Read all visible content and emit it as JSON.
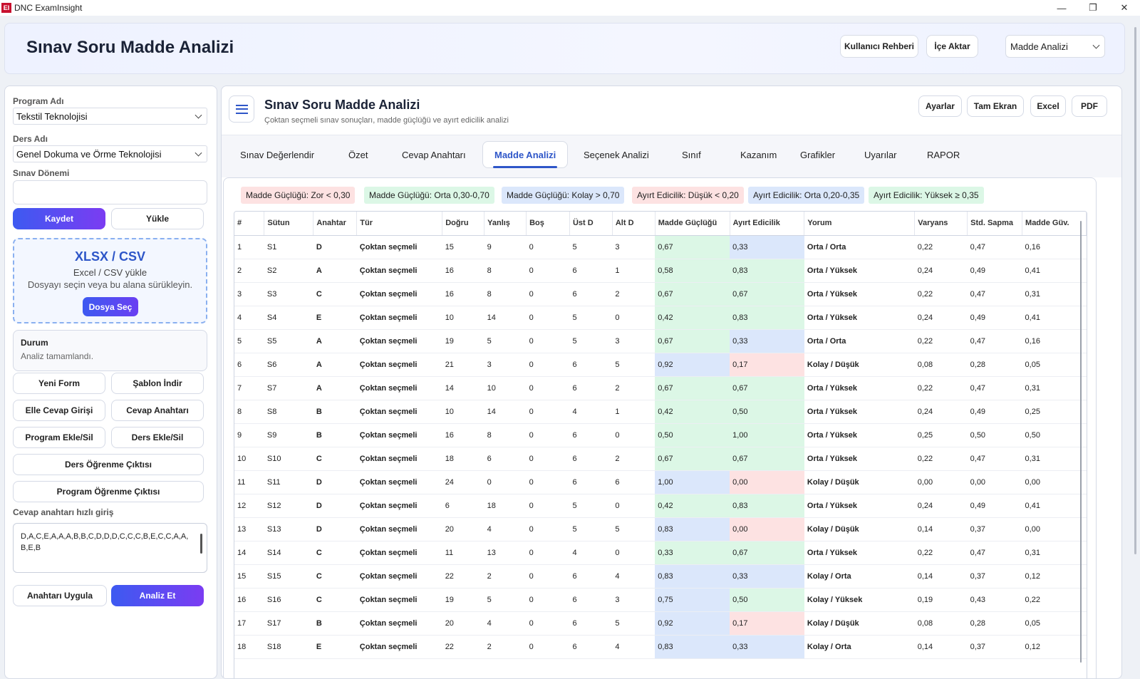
{
  "window": {
    "logo": "EI",
    "title": "DNC ExamInsight",
    "minimize": "—",
    "maximize": "❐",
    "close": "✕"
  },
  "header": {
    "title": "Sınav Soru Madde Analizi",
    "guide": "Kullanıcı Rehberi",
    "import": "İçe Aktar",
    "view_select": "Madde Analizi"
  },
  "sidebar": {
    "program_label": "Program Adı",
    "program_value": "Tekstil Teknolojisi",
    "course_label": "Ders Adı",
    "course_value": "Genel Dokuma ve Örme Teknolojisi",
    "period_label": "Sınav Dönemi",
    "period_value": "",
    "save": "Kaydet",
    "load": "Yükle",
    "dz_title": "XLSX / CSV",
    "dz_sub": "Excel / CSV yükle",
    "dz_hint": "Dosyayı seçin veya bu alana sürükleyin.",
    "dz_button": "Dosya Seç",
    "status_title": "Durum",
    "status_text": "Analiz tamamlandı.",
    "new_form": "Yeni Form",
    "download_template": "Şablon İndir",
    "manual_entry": "Elle Cevap Girişi",
    "answer_key": "Cevap Anahtarı",
    "program_add": "Program Ekle/Sil",
    "course_add": "Ders Ekle/Sil",
    "course_outcome": "Ders Öğrenme Çıktısı",
    "program_outcome": "Program Öğrenme Çıktısı",
    "quick_key_label": "Cevap anahtarı hızlı giriş",
    "quick_key_value": "D,A,C,E,A,A,A,B,B,C,D,D,D,C,C,C,B,E,C,C,A,A,B,E,B",
    "apply_key": "Anahtarı Uygula",
    "analyze": "Analiz Et"
  },
  "main": {
    "title": "Sınav Soru Madde Analizi",
    "subtitle": "Çoktan seçmeli sınav sonuçları, madde güçlüğü ve ayırt edicilik analizi",
    "settings": "Ayarlar",
    "fullscreen": "Tam Ekran",
    "excel": "Excel",
    "pdf": "PDF"
  },
  "tabs": [
    "Sınav Değerlendir",
    "Özet",
    "Cevap Anahtarı",
    "Madde Analizi",
    "Seçenek Analizi",
    "Sınıf",
    "Kazanım",
    "Grafikler",
    "Uyarılar",
    "RAPOR"
  ],
  "legend": [
    "Madde Güçlüğü: Zor < 0,30",
    "Madde Güçlüğü: Orta 0,30-0,70",
    "Madde Güçlüğü: Kolay > 0,70",
    "Ayırt Edicilik: Düşük < 0,20",
    "Ayırt Edicilik: Orta 0,20-0,35",
    "Ayırt Edicilik: Yüksek ≥ 0,35"
  ],
  "table": {
    "headers": [
      "#",
      "Sütun",
      "Anahtar",
      "Tür",
      "Doğru",
      "Yanlış",
      "Boş",
      "Üst D",
      "Alt D",
      "Madde Güçlüğü",
      "Ayırt Edicilik",
      "Yorum",
      "Varyans",
      "Std. Sapma",
      "Madde Güv."
    ],
    "rows": [
      [
        "1",
        "S1",
        "D",
        "Çoktan seçmeli",
        "15",
        "9",
        "0",
        "5",
        "3",
        "0,67",
        "0,33",
        "Orta / Orta",
        "0,22",
        "0,47",
        "0,16"
      ],
      [
        "2",
        "S2",
        "A",
        "Çoktan seçmeli",
        "16",
        "8",
        "0",
        "6",
        "1",
        "0,58",
        "0,83",
        "Orta / Yüksek",
        "0,24",
        "0,49",
        "0,41"
      ],
      [
        "3",
        "S3",
        "C",
        "Çoktan seçmeli",
        "16",
        "8",
        "0",
        "6",
        "2",
        "0,67",
        "0,67",
        "Orta / Yüksek",
        "0,22",
        "0,47",
        "0,31"
      ],
      [
        "4",
        "S4",
        "E",
        "Çoktan seçmeli",
        "10",
        "14",
        "0",
        "5",
        "0",
        "0,42",
        "0,83",
        "Orta / Yüksek",
        "0,24",
        "0,49",
        "0,41"
      ],
      [
        "5",
        "S5",
        "A",
        "Çoktan seçmeli",
        "19",
        "5",
        "0",
        "5",
        "3",
        "0,67",
        "0,33",
        "Orta / Orta",
        "0,22",
        "0,47",
        "0,16"
      ],
      [
        "6",
        "S6",
        "A",
        "Çoktan seçmeli",
        "21",
        "3",
        "0",
        "6",
        "5",
        "0,92",
        "0,17",
        "Kolay / Düşük",
        "0,08",
        "0,28",
        "0,05"
      ],
      [
        "7",
        "S7",
        "A",
        "Çoktan seçmeli",
        "14",
        "10",
        "0",
        "6",
        "2",
        "0,67",
        "0,67",
        "Orta / Yüksek",
        "0,22",
        "0,47",
        "0,31"
      ],
      [
        "8",
        "S8",
        "B",
        "Çoktan seçmeli",
        "10",
        "14",
        "0",
        "4",
        "1",
        "0,42",
        "0,50",
        "Orta / Yüksek",
        "0,24",
        "0,49",
        "0,25"
      ],
      [
        "9",
        "S9",
        "B",
        "Çoktan seçmeli",
        "16",
        "8",
        "0",
        "6",
        "0",
        "0,50",
        "1,00",
        "Orta / Yüksek",
        "0,25",
        "0,50",
        "0,50"
      ],
      [
        "10",
        "S10",
        "C",
        "Çoktan seçmeli",
        "18",
        "6",
        "0",
        "6",
        "2",
        "0,67",
        "0,67",
        "Orta / Yüksek",
        "0,22",
        "0,47",
        "0,31"
      ],
      [
        "11",
        "S11",
        "D",
        "Çoktan seçmeli",
        "24",
        "0",
        "0",
        "6",
        "6",
        "1,00",
        "0,00",
        "Kolay / Düşük",
        "0,00",
        "0,00",
        "0,00"
      ],
      [
        "12",
        "S12",
        "D",
        "Çoktan seçmeli",
        "6",
        "18",
        "0",
        "5",
        "0",
        "0,42",
        "0,83",
        "Orta / Yüksek",
        "0,24",
        "0,49",
        "0,41"
      ],
      [
        "13",
        "S13",
        "D",
        "Çoktan seçmeli",
        "20",
        "4",
        "0",
        "5",
        "5",
        "0,83",
        "0,00",
        "Kolay / Düşük",
        "0,14",
        "0,37",
        "0,00"
      ],
      [
        "14",
        "S14",
        "C",
        "Çoktan seçmeli",
        "11",
        "13",
        "0",
        "4",
        "0",
        "0,33",
        "0,67",
        "Orta / Yüksek",
        "0,22",
        "0,47",
        "0,31"
      ],
      [
        "15",
        "S15",
        "C",
        "Çoktan seçmeli",
        "22",
        "2",
        "0",
        "6",
        "4",
        "0,83",
        "0,33",
        "Kolay / Orta",
        "0,14",
        "0,37",
        "0,12"
      ],
      [
        "16",
        "S16",
        "C",
        "Çoktan seçmeli",
        "19",
        "5",
        "0",
        "6",
        "3",
        "0,75",
        "0,50",
        "Kolay / Yüksek",
        "0,19",
        "0,43",
        "0,22"
      ],
      [
        "17",
        "S17",
        "B",
        "Çoktan seçmeli",
        "20",
        "4",
        "0",
        "6",
        "5",
        "0,92",
        "0,17",
        "Kolay / Düşük",
        "0,08",
        "0,28",
        "0,05"
      ],
      [
        "18",
        "S18",
        "E",
        "Çoktan seçmeli",
        "22",
        "2",
        "0",
        "6",
        "4",
        "0,83",
        "0,33",
        "Kolay / Orta",
        "0,14",
        "0,37",
        "0,12"
      ]
    ]
  },
  "colors": {
    "hard": "#fde2e2",
    "medium": "#dcf7e6",
    "easy": "#dbe7fb",
    "accent": "#2e56c8"
  }
}
